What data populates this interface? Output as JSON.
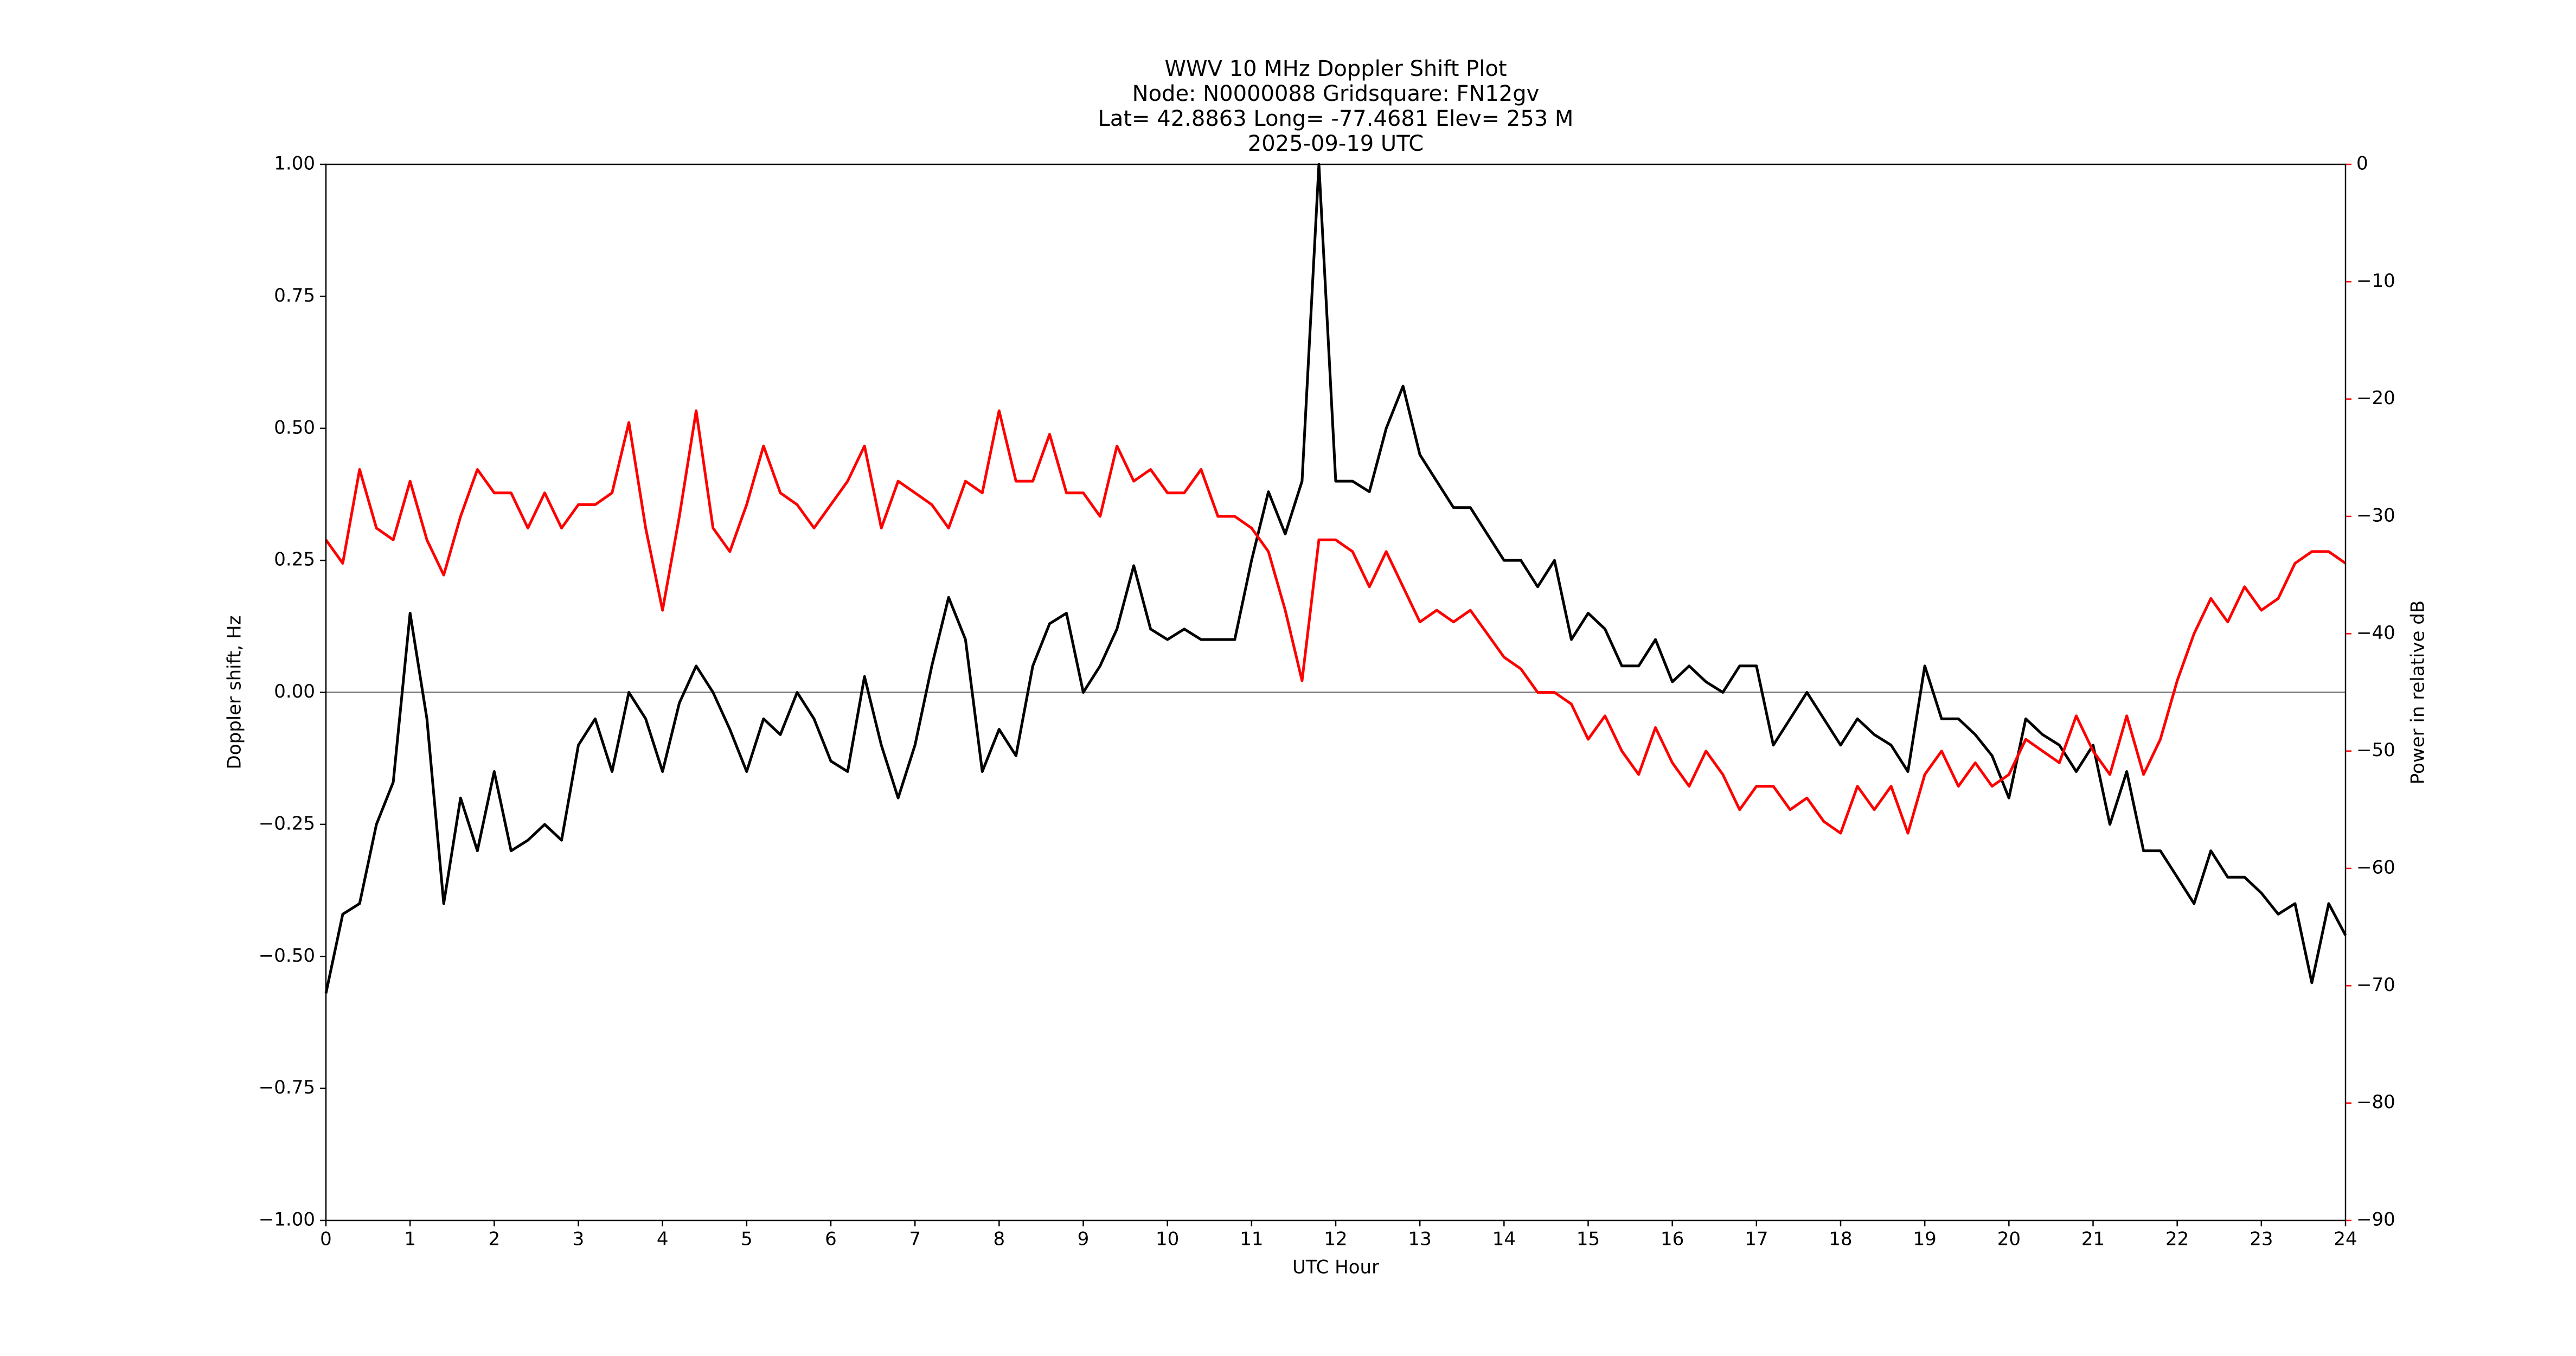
{
  "chart_data": {
    "type": "line",
    "title_lines": [
      "WWV 10 MHz Doppler Shift Plot",
      "Node:  N0000088     Gridsquare:  FN12gv",
      "Lat= 42.8863    Long= -77.4681    Elev= 253 M",
      "2025-09-19  UTC"
    ],
    "x_label": "UTC Hour",
    "y_label": "Doppler shift, Hz",
    "y2_label": "Power in relative dB",
    "x": [
      0,
      0.2,
      0.4,
      0.6,
      0.8,
      1,
      1.2,
      1.4,
      1.6,
      1.8,
      2,
      2.2,
      2.4,
      2.6,
      2.8,
      3,
      3.2,
      3.4,
      3.6,
      3.8,
      4,
      4.2,
      4.4,
      4.6,
      4.8,
      5,
      5.2,
      5.4,
      5.6,
      5.8,
      6,
      6.2,
      6.4,
      6.6,
      6.8,
      7,
      7.2,
      7.4,
      7.6,
      7.8,
      8,
      8.2,
      8.4,
      8.6,
      8.8,
      9,
      9.2,
      9.4,
      9.6,
      9.8,
      10,
      10.2,
      10.4,
      10.6,
      10.8,
      11,
      11.2,
      11.4,
      11.6,
      11.8,
      12,
      12.2,
      12.4,
      12.6,
      12.8,
      13,
      13.2,
      13.4,
      13.6,
      13.8,
      14,
      14.2,
      14.4,
      14.6,
      14.8,
      15,
      15.2,
      15.4,
      15.6,
      15.8,
      16,
      16.2,
      16.4,
      16.6,
      16.8,
      17,
      17.2,
      17.4,
      17.6,
      17.8,
      18,
      18.2,
      18.4,
      18.6,
      18.8,
      19,
      19.2,
      19.4,
      19.6,
      19.8,
      20,
      20.2,
      20.4,
      20.6,
      20.8,
      21,
      21.2,
      21.4,
      21.6,
      21.8,
      22,
      22.2,
      22.4,
      22.6,
      22.8,
      23,
      23.2,
      23.4,
      23.6,
      23.8,
      24
    ],
    "series": [
      {
        "color": "#000000",
        "axis": "y",
        "values": [
          -0.57,
          -0.42,
          -0.4,
          -0.25,
          -0.17,
          0.15,
          -0.05,
          -0.4,
          -0.2,
          -0.3,
          -0.15,
          -0.3,
          -0.28,
          -0.25,
          -0.28,
          -0.1,
          -0.05,
          -0.15,
          0.0,
          -0.05,
          -0.15,
          -0.02,
          0.05,
          0.0,
          -0.07,
          -0.15,
          -0.05,
          -0.08,
          0.0,
          -0.05,
          -0.13,
          -0.15,
          0.03,
          -0.1,
          -0.2,
          -0.1,
          0.05,
          0.18,
          0.1,
          -0.15,
          -0.07,
          -0.12,
          0.05,
          0.13,
          0.15,
          0.0,
          0.05,
          0.12,
          0.24,
          0.12,
          0.1,
          0.12,
          0.1,
          0.1,
          0.1,
          0.25,
          0.38,
          0.3,
          0.4,
          1.0,
          0.4,
          0.4,
          0.38,
          0.5,
          0.58,
          0.45,
          0.4,
          0.35,
          0.35,
          0.3,
          0.25,
          0.25,
          0.2,
          0.25,
          0.1,
          0.15,
          0.12,
          0.05,
          0.05,
          0.1,
          0.02,
          0.05,
          0.02,
          0.0,
          0.05,
          0.05,
          -0.1,
          -0.05,
          0.0,
          -0.05,
          -0.1,
          -0.05,
          -0.08,
          -0.1,
          -0.15,
          0.05,
          -0.05,
          -0.05,
          -0.08,
          -0.12,
          -0.2,
          -0.05,
          -0.08,
          -0.1,
          -0.15,
          -0.1,
          -0.25,
          -0.15,
          -0.3,
          -0.3,
          -0.35,
          -0.4,
          -0.3,
          -0.35,
          -0.35,
          -0.38,
          -0.42,
          -0.4,
          -0.55,
          -0.4,
          -0.46
        ]
      },
      {
        "color": "#ff0000",
        "axis": "y2",
        "values": [
          -32,
          -34,
          -26,
          -31,
          -32,
          -27,
          -32,
          -35,
          -30,
          -26,
          -28,
          -28,
          -31,
          -28,
          -31,
          -29,
          -29,
          -28,
          -22,
          -31,
          -38,
          -30,
          -21,
          -31,
          -33,
          -29,
          -24,
          -28,
          -29,
          -31,
          -29,
          -27,
          -24,
          -31,
          -27,
          -28,
          -29,
          -31,
          -27,
          -28,
          -21,
          -27,
          -27,
          -23,
          -28,
          -28,
          -30,
          -24,
          -27,
          -26,
          -28,
          -28,
          -26,
          -30,
          -30,
          -31,
          -33,
          -38,
          -44,
          -32,
          -32,
          -33,
          -36,
          -33,
          -36,
          -39,
          -38,
          -39,
          -38,
          -40,
          -42,
          -43,
          -45,
          -45,
          -46,
          -49,
          -47,
          -50,
          -52,
          -48,
          -51,
          -53,
          -50,
          -52,
          -55,
          -53,
          -53,
          -55,
          -54,
          -56,
          -57,
          -53,
          -55,
          -53,
          -57,
          -52,
          -50,
          -53,
          -51,
          -53,
          -52,
          -49,
          -50,
          -51,
          -47,
          -50,
          -52,
          -47,
          -52,
          -49,
          -44,
          -40,
          -37,
          -39,
          -36,
          -38,
          -37,
          -34,
          -33,
          -33,
          -34
        ]
      }
    ],
    "hline": 0,
    "hline_color": "#808080",
    "xlim": [
      0,
      24
    ],
    "xticks": [
      0,
      1,
      2,
      3,
      4,
      5,
      6,
      7,
      8,
      9,
      10,
      11,
      12,
      13,
      14,
      15,
      16,
      17,
      18,
      19,
      20,
      21,
      22,
      23,
      24
    ],
    "ylim": [
      -1,
      1
    ],
    "yticks": [
      {
        "value": -1,
        "label": "−1.00"
      },
      {
        "value": -0.75,
        "label": "−0.75"
      },
      {
        "value": -0.5,
        "label": "−0.50"
      },
      {
        "value": -0.25,
        "label": "−0.25"
      },
      {
        "value": 0,
        "label": "0.00"
      },
      {
        "value": 0.25,
        "label": "0.25"
      },
      {
        "value": 0.5,
        "label": "0.50"
      },
      {
        "value": 0.75,
        "label": "0.75"
      },
      {
        "value": 1,
        "label": "1.00"
      }
    ],
    "y2lim": [
      -90,
      0
    ],
    "y2ticks": [
      {
        "value": -90,
        "label": "−90"
      },
      {
        "value": -80,
        "label": "−80"
      },
      {
        "value": -70,
        "label": "−70"
      },
      {
        "value": -60,
        "label": "−60"
      },
      {
        "value": -50,
        "label": "−50"
      },
      {
        "value": -40,
        "label": "−40"
      },
      {
        "value": -30,
        "label": "−30"
      },
      {
        "value": -20,
        "label": "−20"
      },
      {
        "value": -10,
        "label": "−10"
      },
      0
    ],
    "y2_color": "#ff0000"
  }
}
